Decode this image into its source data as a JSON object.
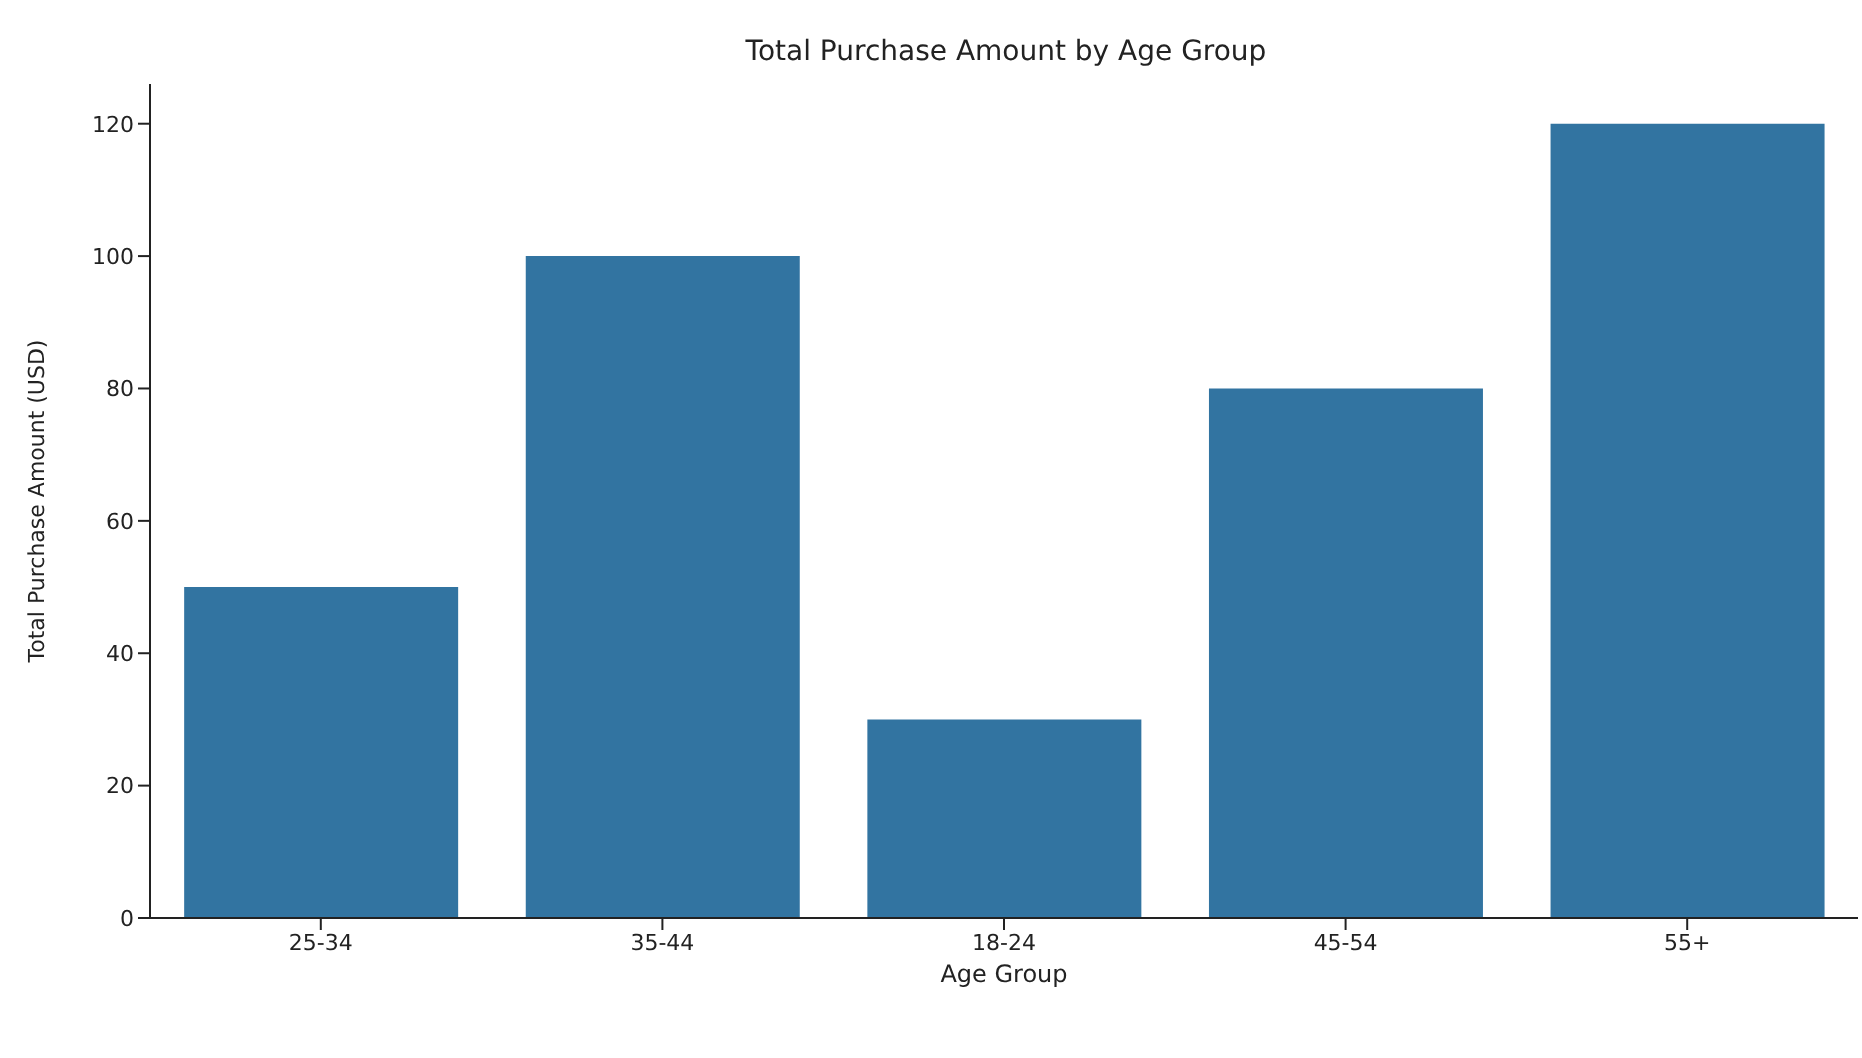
{
  "chart_data": {
    "type": "bar",
    "title": "Total Purchase Amount by Age Group",
    "xlabel": "Age Group",
    "ylabel": "Total Purchase Amount (USD)",
    "categories": [
      "25-34",
      "35-44",
      "18-24",
      "45-54",
      "55+"
    ],
    "values": [
      50,
      100,
      30,
      80,
      120
    ],
    "color": "#3274a1",
    "ylim": [
      0,
      126
    ],
    "yticks": [
      0,
      20,
      40,
      60,
      80,
      100,
      120
    ],
    "grid": false,
    "legend": false
  }
}
